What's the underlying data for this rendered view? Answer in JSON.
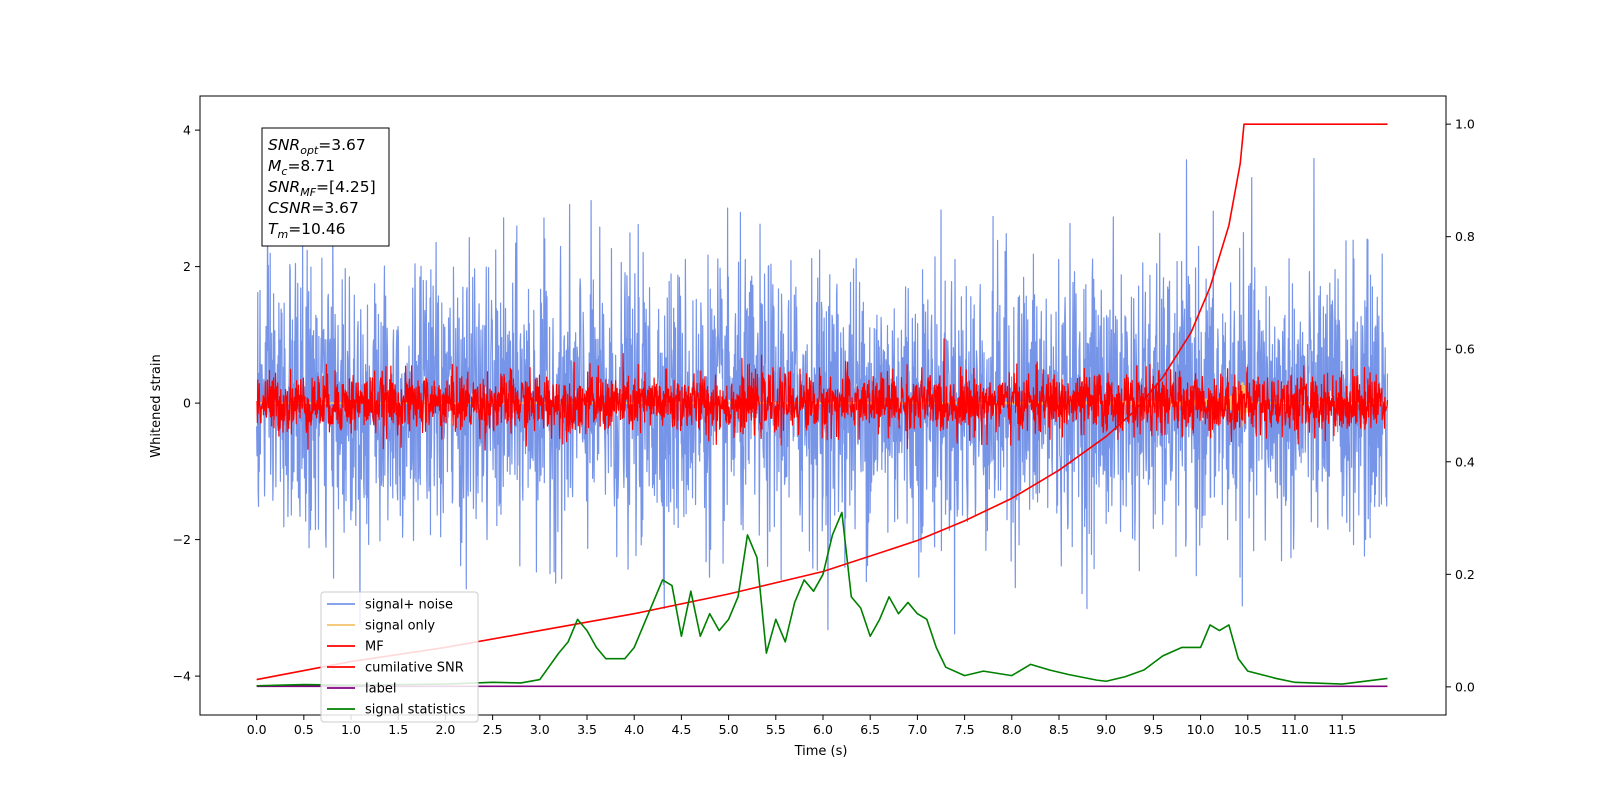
{
  "chart_data": {
    "type": "line",
    "xlabel": "Time (s)",
    "ylabel": "Whitened strain",
    "xlim": [
      -0.6,
      12.6
    ],
    "ylim": [
      -4.57,
      4.5
    ],
    "ylim_right": [
      -0.05,
      1.05
    ],
    "x_ticks": [
      0.0,
      0.5,
      1.0,
      1.5,
      2.0,
      2.5,
      3.0,
      3.5,
      4.0,
      4.5,
      5.0,
      5.5,
      6.0,
      6.5,
      7.0,
      7.5,
      8.0,
      8.5,
      9.0,
      9.5,
      10.0,
      10.5,
      11.0,
      11.5
    ],
    "x_tick_labels": [
      "0.0",
      "0.5",
      "1.0",
      "1.5",
      "2.0",
      "2.5",
      "3.0",
      "3.5",
      "4.0",
      "4.5",
      "5.0",
      "5.5",
      "6.0",
      "6.5",
      "7.0",
      "7.5",
      "8.0",
      "8.5",
      "9.0",
      "9.5",
      "10.0",
      "10.5",
      "11.0",
      "11.5"
    ],
    "y_ticks": [
      4,
      2,
      0,
      -2,
      -4
    ],
    "y_tick_labels": [
      "4",
      "2",
      "0",
      "−2",
      "−4"
    ],
    "y_right_ticks": [
      1.0,
      0.8,
      0.6,
      0.4,
      0.2,
      0.0
    ],
    "y_right_tick_labels": [
      "1.0",
      "0.8",
      "0.6",
      "0.4",
      "0.2",
      "0.0"
    ],
    "grid": false,
    "legend_position": "lower-left",
    "annotation": {
      "lines": [
        {
          "base": "SNR",
          "sub": "opt",
          "value": "=3.67"
        },
        {
          "base": "M",
          "sub": "c",
          "value": "=8.71"
        },
        {
          "base": "SNR",
          "sub": "MF",
          "value": "=[4.25]"
        },
        {
          "base": "CSNR",
          "sub": "",
          "value": "=3.67"
        },
        {
          "base": "T",
          "sub": "m",
          "value": "=10.46"
        }
      ]
    },
    "series": [
      {
        "name": "signal+ noise",
        "color": "#7795e8",
        "axis": "left",
        "kind": "noise",
        "x_range": [
          0.0,
          11.98
        ],
        "std": 1.0,
        "sample_count": 3000
      },
      {
        "name": "signal only",
        "color": "#f5c26b",
        "axis": "left",
        "kind": "chirp",
        "x_range": [
          0.0,
          11.98
        ],
        "merger_time": 10.46,
        "peak": 0.4
      },
      {
        "name": "MF",
        "color": "#ff0000",
        "axis": "left",
        "kind": "noise",
        "x_range": [
          0.0,
          11.98
        ],
        "std": 0.22,
        "sample_count": 3000
      },
      {
        "name": "cumilative SNR",
        "color": "#ff0000",
        "axis": "right",
        "x": [
          0.0,
          1.0,
          2.0,
          3.0,
          4.0,
          5.0,
          6.0,
          7.0,
          7.5,
          8.0,
          8.5,
          9.0,
          9.3,
          9.6,
          9.9,
          10.1,
          10.3,
          10.42,
          10.46,
          11.98
        ],
        "y": [
          0.013,
          0.045,
          0.07,
          0.1,
          0.13,
          0.165,
          0.205,
          0.26,
          0.295,
          0.335,
          0.385,
          0.445,
          0.49,
          0.55,
          0.63,
          0.71,
          0.82,
          0.93,
          1.0,
          1.0
        ]
      },
      {
        "name": "label",
        "color": "#800080",
        "axis": "right",
        "x": [
          0.0,
          11.98
        ],
        "y": [
          0.001,
          0.001
        ]
      },
      {
        "name": "signal statistics",
        "color": "#008000",
        "axis": "right",
        "x": [
          0.0,
          0.5,
          1.0,
          1.5,
          2.0,
          2.5,
          2.8,
          3.0,
          3.2,
          3.3,
          3.4,
          3.5,
          3.6,
          3.7,
          3.9,
          4.0,
          4.1,
          4.2,
          4.3,
          4.4,
          4.5,
          4.6,
          4.7,
          4.8,
          4.9,
          5.0,
          5.1,
          5.2,
          5.3,
          5.4,
          5.5,
          5.6,
          5.7,
          5.8,
          5.9,
          6.0,
          6.1,
          6.2,
          6.3,
          6.4,
          6.5,
          6.6,
          6.7,
          6.8,
          6.9,
          7.0,
          7.1,
          7.2,
          7.3,
          7.5,
          7.7,
          8.0,
          8.2,
          8.4,
          8.6,
          8.9,
          9.0,
          9.2,
          9.4,
          9.6,
          9.8,
          10.0,
          10.1,
          10.2,
          10.3,
          10.4,
          10.5,
          10.8,
          11.0,
          11.5,
          11.98
        ],
        "y": [
          0.002,
          0.004,
          0.003,
          0.004,
          0.005,
          0.008,
          0.007,
          0.013,
          0.06,
          0.08,
          0.12,
          0.1,
          0.07,
          0.05,
          0.05,
          0.07,
          0.11,
          0.15,
          0.19,
          0.18,
          0.09,
          0.17,
          0.09,
          0.13,
          0.1,
          0.12,
          0.16,
          0.27,
          0.23,
          0.06,
          0.12,
          0.08,
          0.15,
          0.19,
          0.17,
          0.2,
          0.27,
          0.31,
          0.16,
          0.14,
          0.09,
          0.12,
          0.16,
          0.13,
          0.15,
          0.13,
          0.12,
          0.07,
          0.035,
          0.02,
          0.028,
          0.02,
          0.04,
          0.03,
          0.022,
          0.012,
          0.01,
          0.018,
          0.03,
          0.055,
          0.07,
          0.07,
          0.11,
          0.1,
          0.11,
          0.05,
          0.028,
          0.015,
          0.008,
          0.005,
          0.015
        ]
      }
    ]
  }
}
